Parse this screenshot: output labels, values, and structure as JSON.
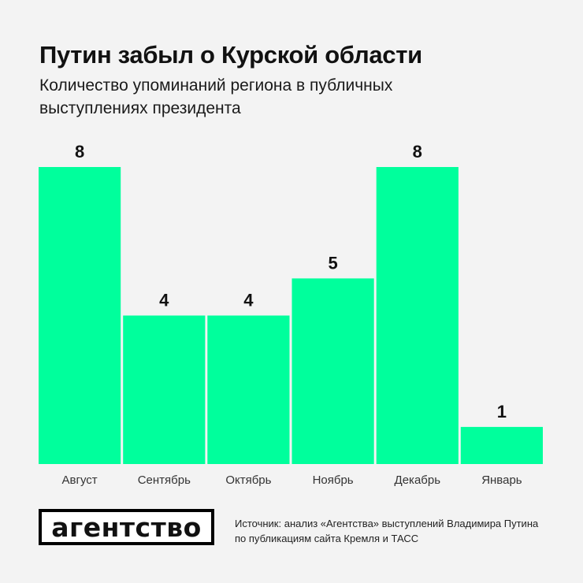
{
  "title": "Путин забыл о Курской области",
  "subtitle": "Количество упоминаний региона в публичных выступлениях президента",
  "colors": {
    "background": "#f3f3f3",
    "bar": "#00ff9c",
    "text": "#111111"
  },
  "chart_data": {
    "type": "bar",
    "categories": [
      "Август",
      "Сентябрь",
      "Октябрь",
      "Ноябрь",
      "Декабрь",
      "Январь"
    ],
    "values": [
      8,
      4,
      4,
      5,
      8,
      1
    ],
    "title": "Путин забыл о Курской области",
    "subtitle": "Количество упоминаний региона в публичных выступлениях президента",
    "xlabel": "",
    "ylabel": "",
    "ylim": [
      0,
      8
    ],
    "grid": false,
    "data_labels": true
  },
  "logo": {
    "text": "агентство"
  },
  "source": "Источник: анализ «Агентства» выступлений Владимира Путина по публикациям сайта Кремля и ТАСС"
}
